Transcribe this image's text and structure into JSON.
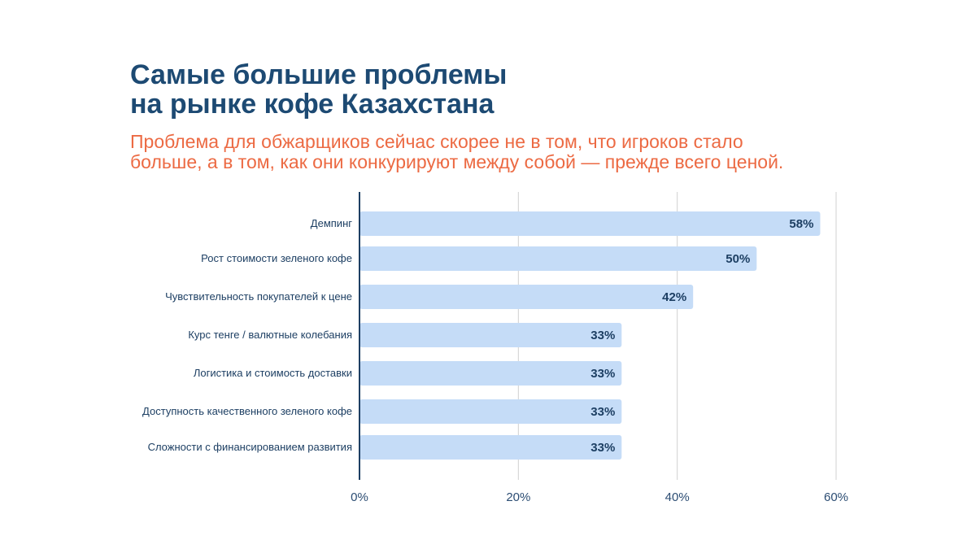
{
  "title_lines": [
    "Самые большие проблемы",
    "на рынке кофе Казахстана"
  ],
  "subtitle_lines": [
    "Проблема для обжарщиков сейчас скорее не в том, что игроков стало",
    "больше, а в том, как они конкурируют между собой — прежде всего ценой."
  ],
  "colors": {
    "title": "#1d4a73",
    "subtitle": "#ec6a43",
    "bar": "#c5dcf7",
    "axis": "#1d3f63",
    "grid": "#d0d0d0"
  },
  "chart_data": {
    "type": "bar",
    "orientation": "horizontal",
    "categories": [
      "Демпинг",
      "Рост стоимости зеленого кофе",
      "Чувствительность покупателей к цене",
      "Курс тенге / валютные колебания",
      "Логистика и стоимость доставки",
      "Доступность качественного зеленого кофе",
      "Сложности с финансированием развития"
    ],
    "values": [
      58,
      50,
      42,
      33,
      33,
      33,
      33
    ],
    "value_labels": [
      "58%",
      "50%",
      "42%",
      "33%",
      "33%",
      "33%",
      "33%"
    ],
    "xlim": [
      0,
      60
    ],
    "x_ticks": [
      0,
      20,
      40,
      60
    ],
    "x_tick_labels": [
      "0%",
      "20%",
      "40%",
      "60%"
    ],
    "grid": true,
    "legend": false
  }
}
